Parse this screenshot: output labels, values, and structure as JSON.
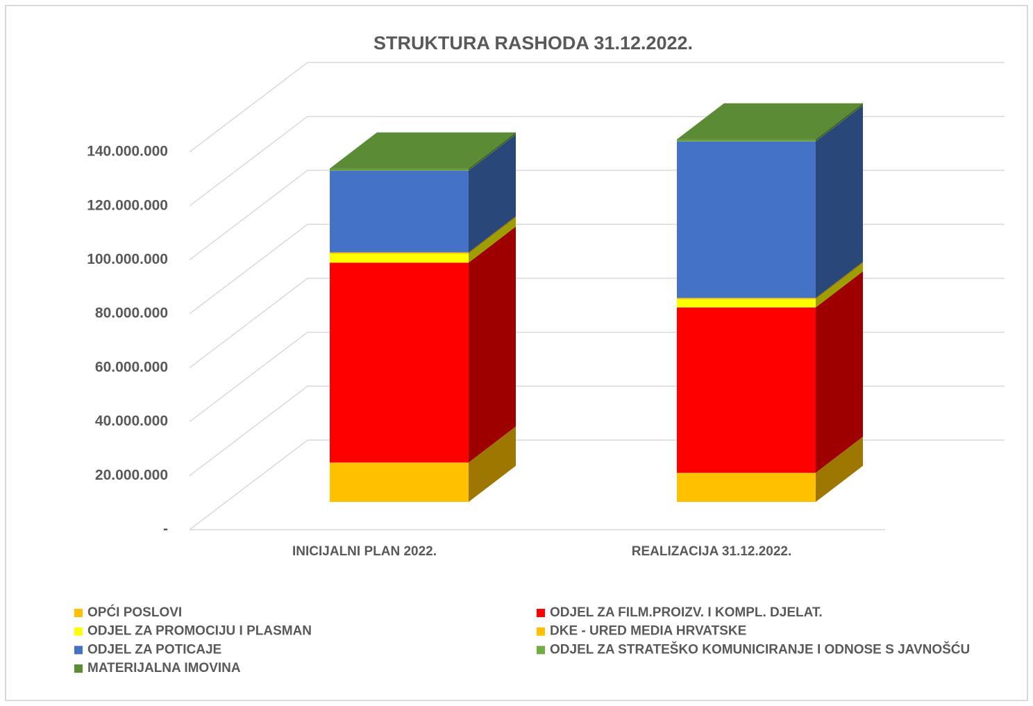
{
  "chart_data": {
    "type": "bar3d_stacked",
    "title": "STRUKTURA RASHODA 31.12.2022.",
    "categories": [
      "INICIJALNI PLAN 2022.",
      "REALIZACIJA 31.12.2022."
    ],
    "series": [
      {
        "name": "OPĆI POSLOVI",
        "color": "#ffc000",
        "values": [
          14600000,
          10800000
        ]
      },
      {
        "name": "ODJEL ZA FILM.PROIZV. I KOMPL. DJELAT.",
        "color": "#ff0000",
        "values": [
          74100000,
          61300000
        ]
      },
      {
        "name": "ODJEL ZA PROMOCIJU I PLASMAN",
        "color": "#ffff00",
        "values": [
          3300000,
          3000000
        ]
      },
      {
        "name": "DKE - URED MEDIA HRVATSKE",
        "color": "#ffc000",
        "values": [
          500000,
          500000
        ]
      },
      {
        "name": "ODJEL ZA POTICAJE",
        "color": "#4472c4",
        "values": [
          30300000,
          58000000
        ]
      },
      {
        "name": "ODJEL ZA STRATEŠKO KOMUNICIRANJE I ODNOSE S JAVNOŠĆU",
        "color": "#70ad47",
        "values": [
          300000,
          300000
        ]
      },
      {
        "name": "MATERIJALNA IMOVINA",
        "color": "#5b8c35",
        "values": [
          500000,
          500000
        ]
      }
    ],
    "ylim": [
      0,
      140000000
    ],
    "yticks": [
      {
        "value": 0,
        "label": "-"
      },
      {
        "value": 20000000,
        "label": "20.000.000"
      },
      {
        "value": 40000000,
        "label": "40.000.000"
      },
      {
        "value": 60000000,
        "label": "60.000.000"
      },
      {
        "value": 80000000,
        "label": "80.000.000"
      },
      {
        "value": 100000000,
        "label": "100.000.000"
      },
      {
        "value": 120000000,
        "label": "120.000.000"
      },
      {
        "value": 140000000,
        "label": "140.000.000"
      }
    ],
    "grid": true
  }
}
